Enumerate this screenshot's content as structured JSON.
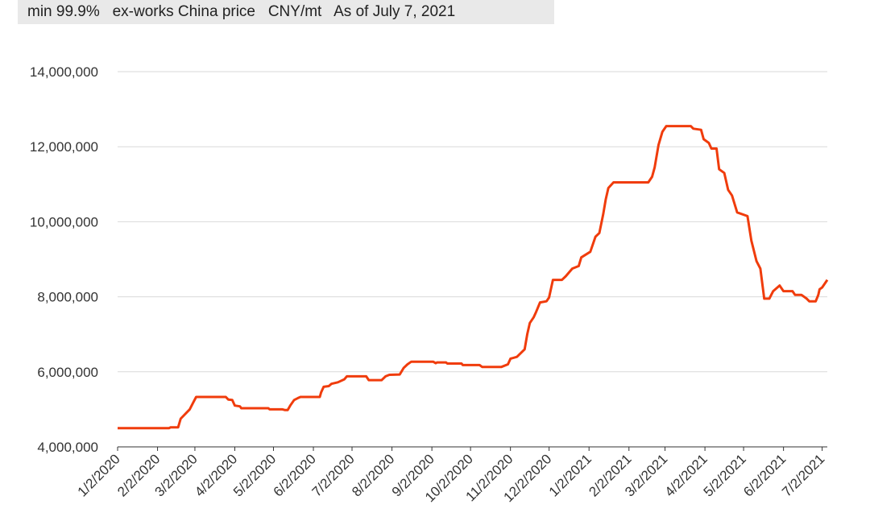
{
  "chart_data": {
    "type": "line",
    "title": "min 99.9%   ex-works China price   CNY/mt   As of July 7, 2021",
    "color": "#f03c0c",
    "grid": true,
    "ylim": [
      4000000,
      14000000
    ],
    "yticks": [
      {
        "value": 4000000,
        "label": "4,000,000"
      },
      {
        "value": 6000000,
        "label": "6,000,000"
      },
      {
        "value": 8000000,
        "label": "8,000,000"
      },
      {
        "value": 10000000,
        "label": "10,000,000"
      },
      {
        "value": 12000000,
        "label": "12,000,000"
      },
      {
        "value": 14000000,
        "label": "14,000,000"
      }
    ],
    "xlim": [
      "2020-01-02",
      "2021-07-06"
    ],
    "xticks": [
      {
        "value": "2020-01-02",
        "label": "1/2/2020"
      },
      {
        "value": "2020-02-02",
        "label": "2/2/2020"
      },
      {
        "value": "2020-03-02",
        "label": "3/2/2020"
      },
      {
        "value": "2020-04-02",
        "label": "4/2/2020"
      },
      {
        "value": "2020-05-02",
        "label": "5/2/2020"
      },
      {
        "value": "2020-06-02",
        "label": "6/2/2020"
      },
      {
        "value": "2020-07-02",
        "label": "7/2/2020"
      },
      {
        "value": "2020-08-02",
        "label": "8/2/2020"
      },
      {
        "value": "2020-09-02",
        "label": "9/2/2020"
      },
      {
        "value": "2020-10-02",
        "label": "10/2/2020"
      },
      {
        "value": "2020-11-02",
        "label": "11/2/2020"
      },
      {
        "value": "2020-12-02",
        "label": "12/2/2020"
      },
      {
        "value": "2021-01-02",
        "label": "1/2/2021"
      },
      {
        "value": "2021-02-02",
        "label": "2/2/2021"
      },
      {
        "value": "2021-03-02",
        "label": "3/2/2021"
      },
      {
        "value": "2021-04-02",
        "label": "4/2/2021"
      },
      {
        "value": "2021-05-02",
        "label": "5/2/2021"
      },
      {
        "value": "2021-06-02",
        "label": "6/2/2021"
      },
      {
        "value": "2021-07-02",
        "label": "7/2/2021"
      }
    ],
    "x": [
      "2020-01-02",
      "2020-02-11",
      "2020-02-12",
      "2020-02-18",
      "2020-02-20",
      "2020-02-27",
      "2020-03-01",
      "2020-03-03",
      "2020-03-26",
      "2020-03-28",
      "2020-03-31",
      "2020-04-02",
      "2020-04-06",
      "2020-04-07",
      "2020-04-28",
      "2020-04-29",
      "2020-05-09",
      "2020-05-11",
      "2020-05-13",
      "2020-05-15",
      "2020-05-18",
      "2020-05-21",
      "2020-05-23",
      "2020-06-07",
      "2020-06-08",
      "2020-06-10",
      "2020-06-14",
      "2020-06-16",
      "2020-06-21",
      "2020-06-26",
      "2020-06-28",
      "2020-07-13",
      "2020-07-15",
      "2020-07-25",
      "2020-07-28",
      "2020-07-31",
      "2020-08-08",
      "2020-08-11",
      "2020-08-14",
      "2020-08-17",
      "2020-09-03",
      "2020-09-05",
      "2020-09-06",
      "2020-09-13",
      "2020-09-14",
      "2020-09-25",
      "2020-09-26",
      "2020-10-09",
      "2020-10-11",
      "2020-10-26",
      "2020-10-31",
      "2020-11-02",
      "2020-11-07",
      "2020-11-13",
      "2020-11-15",
      "2020-11-17",
      "2020-11-20",
      "2020-11-22",
      "2020-11-25",
      "2020-11-30",
      "2020-12-02",
      "2020-12-05",
      "2020-12-12",
      "2020-12-15",
      "2020-12-20",
      "2020-12-25",
      "2020-12-27",
      "2021-01-03",
      "2021-01-07",
      "2021-01-10",
      "2021-01-13",
      "2021-01-15",
      "2021-01-17",
      "2021-01-21",
      "2021-02-17",
      "2021-02-20",
      "2021-02-22",
      "2021-02-25",
      "2021-02-28",
      "2021-03-03",
      "2021-03-22",
      "2021-03-24",
      "2021-03-30",
      "2021-04-01",
      "2021-04-05",
      "2021-04-07",
      "2021-04-11",
      "2021-04-13",
      "2021-04-17",
      "2021-04-20",
      "2021-04-23",
      "2021-04-27",
      "2021-05-05",
      "2021-05-08",
      "2021-05-12",
      "2021-05-15",
      "2021-05-18",
      "2021-05-22",
      "2021-05-25",
      "2021-05-30",
      "2021-06-02",
      "2021-06-09",
      "2021-06-11",
      "2021-06-16",
      "2021-06-20",
      "2021-06-22",
      "2021-06-27",
      "2021-06-29",
      "2021-06-30",
      "2021-07-02",
      "2021-07-06"
    ],
    "values": [
      4500000,
      4500000,
      4520000,
      4520000,
      4750000,
      5000000,
      5200000,
      5330000,
      5330000,
      5260000,
      5250000,
      5100000,
      5080000,
      5030000,
      5030000,
      5000000,
      5000000,
      4980000,
      4980000,
      5100000,
      5250000,
      5300000,
      5330000,
      5330000,
      5450000,
      5600000,
      5620000,
      5680000,
      5720000,
      5800000,
      5880000,
      5880000,
      5780000,
      5780000,
      5880000,
      5920000,
      5930000,
      6100000,
      6200000,
      6270000,
      6270000,
      6230000,
      6250000,
      6250000,
      6220000,
      6220000,
      6180000,
      6180000,
      6130000,
      6130000,
      6200000,
      6350000,
      6400000,
      6600000,
      7000000,
      7300000,
      7450000,
      7600000,
      7850000,
      7880000,
      7980000,
      8450000,
      8450000,
      8550000,
      8750000,
      8820000,
      9050000,
      9200000,
      9600000,
      9700000,
      10200000,
      10600000,
      10900000,
      11050000,
      11050000,
      11200000,
      11450000,
      12050000,
      12400000,
      12550000,
      12550000,
      12480000,
      12450000,
      12200000,
      12100000,
      11950000,
      11950000,
      11400000,
      11300000,
      10850000,
      10700000,
      10250000,
      10150000,
      9500000,
      8950000,
      8750000,
      7950000,
      7950000,
      8150000,
      8300000,
      8150000,
      8150000,
      8050000,
      8050000,
      7950000,
      7880000,
      7880000,
      8050000,
      8200000,
      8250000,
      8450000
    ]
  }
}
